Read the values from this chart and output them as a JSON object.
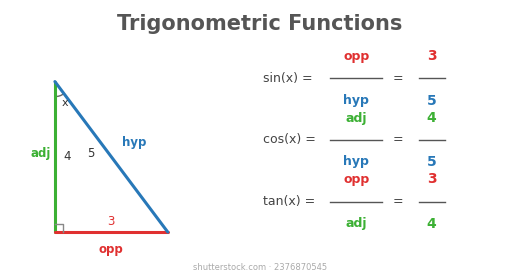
{
  "title": "Trigonometric Functions",
  "title_color": "#555555",
  "title_fontsize": 15,
  "bg_color": "#ffffff",
  "triangle": {
    "adj_color": "#3cb034",
    "opp_color": "#e03030",
    "hyp_color": "#2878b8",
    "adj_label": "adj",
    "opp_label": "opp",
    "hyp_label": "hyp",
    "adj_value": "4",
    "opp_value": "3",
    "hyp_value": "5",
    "angle_label": "x"
  },
  "formulas": [
    {
      "func": "sin(x) = ",
      "num": "opp",
      "den": "hyp",
      "num2": "3",
      "den2": "5",
      "num_color": "#e03030",
      "den_color": "#2878b8",
      "num2_color": "#e03030",
      "den2_color": "#2878b8",
      "fy": 0.72
    },
    {
      "func": "cos(x) = ",
      "num": "adj",
      "den": "hyp",
      "num2": "4",
      "den2": "5",
      "num_color": "#3cb034",
      "den_color": "#2878b8",
      "num2_color": "#3cb034",
      "den2_color": "#2878b8",
      "fy": 0.5
    },
    {
      "func": "tan(x) = ",
      "num": "opp",
      "den": "adj",
      "num2": "3",
      "den2": "4",
      "num_color": "#e03030",
      "den_color": "#3cb034",
      "num2_color": "#e03030",
      "den2_color": "#3cb034",
      "fy": 0.28
    }
  ],
  "func_color": "#444444",
  "watermark": "shutterstock.com · 2376870545",
  "watermark_color": "#aaaaaa",
  "watermark_fontsize": 6
}
